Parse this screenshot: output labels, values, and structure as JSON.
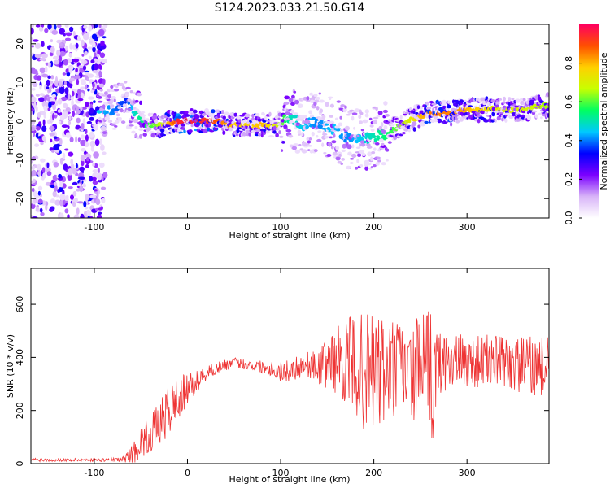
{
  "figure_title": "S124.2023.033.21.50.G14",
  "colors": {
    "snr_line": "#ee3333",
    "axis": "#000000",
    "background": "#ffffff"
  },
  "chart_data": [
    {
      "type": "heatmap",
      "title": "S124.2023.033.21.50.G14",
      "xlabel": "Height of straight line (km)",
      "ylabel": "Frequency (Hz)",
      "xlim": [
        -168,
        388
      ],
      "ylim": [
        -25,
        25
      ],
      "x_ticks": [
        -100,
        0,
        100,
        200,
        300
      ],
      "y_ticks": [
        -20,
        -10,
        0,
        10,
        20
      ],
      "colorbar": {
        "label": "Normalized spectral amplitude",
        "range": [
          0.0,
          1.0
        ],
        "ticks": [
          "0.0",
          "0.2",
          "0.4",
          "0.6",
          "0.8"
        ],
        "tick_values": [
          0.0,
          0.2,
          0.4,
          0.6,
          0.8
        ],
        "colormap": [
          "#ffffff",
          "#d8b4f8",
          "#7b00ff",
          "#0000ff",
          "#00c8ff",
          "#00ff60",
          "#c8ff00",
          "#ffd000",
          "#ff5000",
          "#ff0060"
        ]
      },
      "ridge": {
        "x": [
          -95,
          -80,
          -65,
          -55,
          -45,
          -30,
          -10,
          10,
          30,
          45,
          60,
          80,
          95,
          110,
          125,
          140,
          155,
          170,
          185,
          200,
          215,
          230,
          245,
          260,
          280,
          300,
          320,
          340,
          360,
          385
        ],
        "y": [
          2,
          3,
          5,
          2,
          -1,
          -1,
          0,
          0,
          0,
          -1,
          -1,
          -1,
          -1,
          1,
          -1,
          0,
          -2,
          -4,
          -5,
          -4,
          -3,
          -1,
          1,
          2,
          2,
          3,
          3,
          3,
          3,
          4
        ],
        "amplitude": [
          0.45,
          0.4,
          0.35,
          0.5,
          0.55,
          0.65,
          0.95,
          0.95,
          0.9,
          0.8,
          0.75,
          0.8,
          0.7,
          0.5,
          0.45,
          0.4,
          0.45,
          0.4,
          0.45,
          0.5,
          0.55,
          0.65,
          0.75,
          0.85,
          0.85,
          0.8,
          0.75,
          0.7,
          0.7,
          0.65
        ]
      },
      "noisy_region": {
        "x": [
          -168,
          -88
        ],
        "y": [
          -25,
          25
        ]
      }
    },
    {
      "type": "line",
      "xlabel": "Height of straight line (km)",
      "ylabel": "SNR (10 * v/v)",
      "xlim": [
        -168,
        388
      ],
      "ylim": [
        0,
        735
      ],
      "x_ticks": [
        -100,
        0,
        100,
        200,
        300
      ],
      "y_ticks": [
        0,
        200,
        400,
        600
      ],
      "series": [
        {
          "x": [
            -168,
            -140,
            -100,
            -70,
            -58,
            -50,
            -40,
            -30,
            -20,
            -10,
            0,
            10,
            20,
            30,
            40,
            50,
            60,
            70,
            80,
            90,
            100,
            110,
            120,
            130,
            140,
            150,
            160,
            170,
            180,
            190,
            200,
            210,
            220,
            230,
            240,
            250,
            260,
            265,
            270,
            280,
            300,
            320,
            340,
            360,
            388
          ],
          "y": [
            15,
            14,
            14,
            15,
            40,
            80,
            110,
            150,
            200,
            240,
            280,
            310,
            340,
            360,
            370,
            380,
            375,
            370,
            365,
            360,
            345,
            350,
            370,
            375,
            360,
            380,
            390,
            380,
            370,
            340,
            350,
            330,
            350,
            360,
            330,
            360,
            330,
            320,
            380,
            390,
            380,
            390,
            380,
            370,
            360
          ],
          "spread": [
            8,
            6,
            6,
            8,
            40,
            60,
            70,
            80,
            100,
            90,
            60,
            40,
            30,
            25,
            20,
            20,
            20,
            20,
            25,
            30,
            40,
            40,
            50,
            50,
            60,
            100,
            130,
            160,
            200,
            220,
            250,
            220,
            200,
            180,
            160,
            230,
            260,
            250,
            120,
            110,
            100,
            100,
            100,
            110,
            120
          ]
        }
      ]
    }
  ]
}
